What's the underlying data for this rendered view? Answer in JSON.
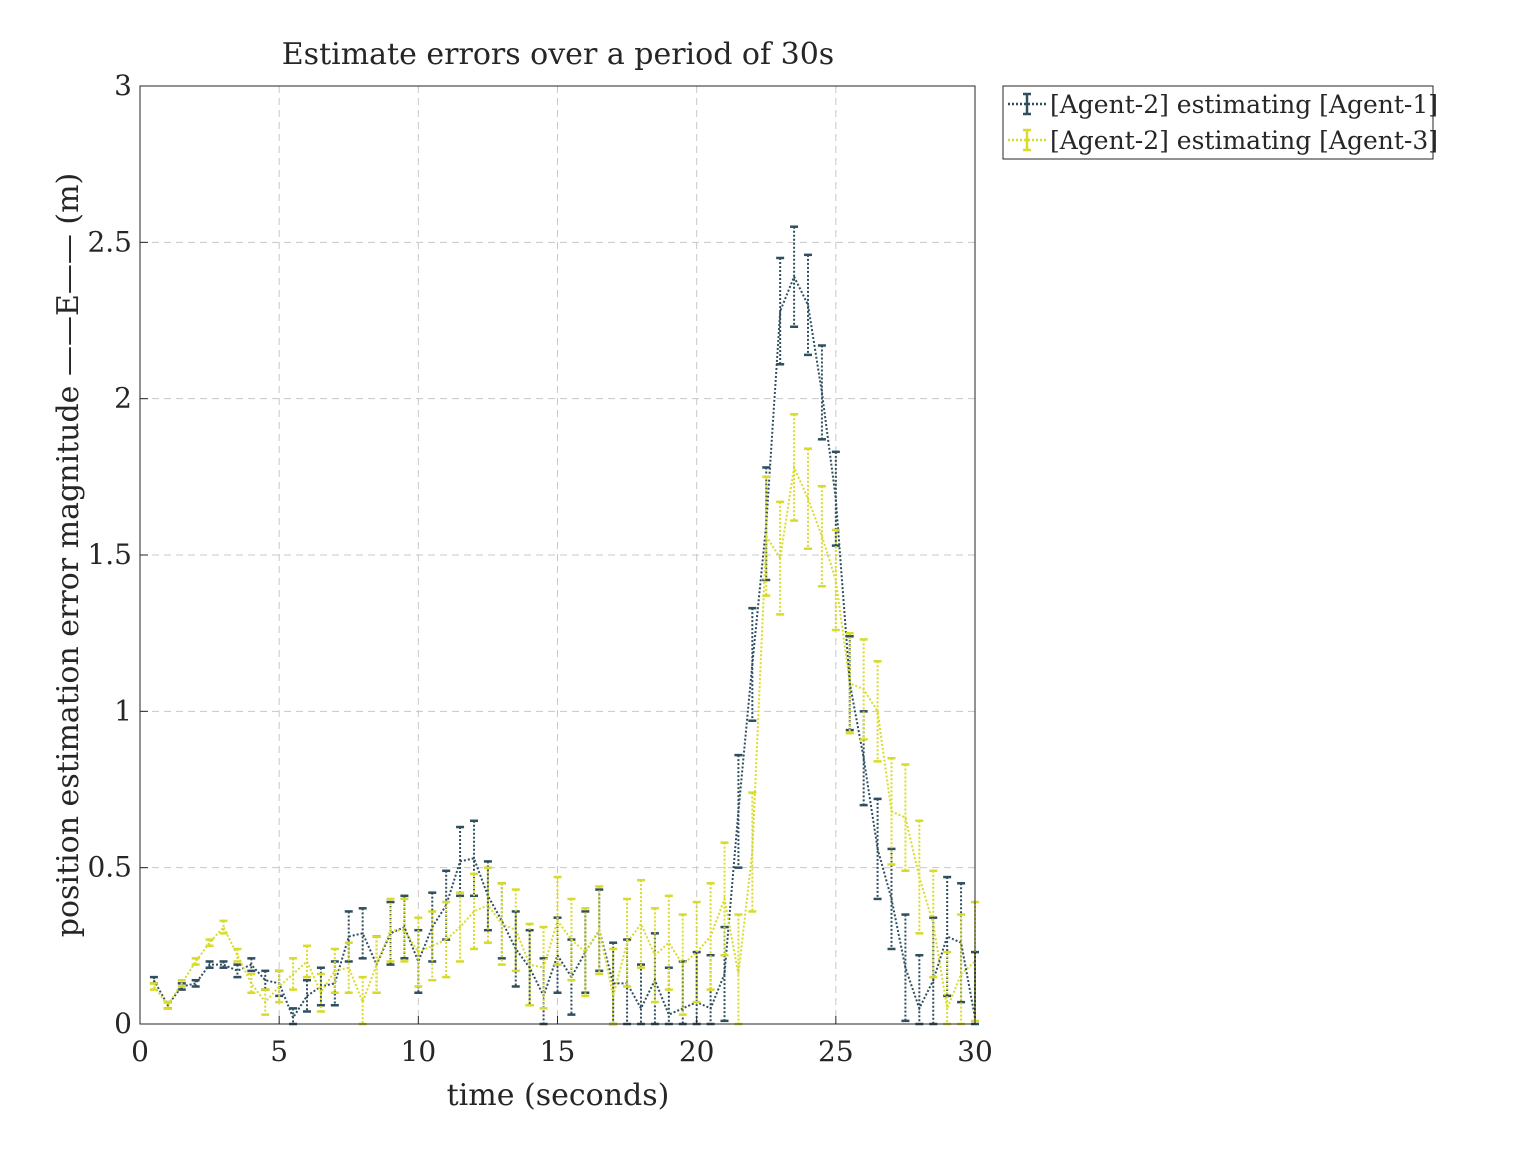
{
  "chart_data": {
    "type": "line",
    "title": "Estimate errors over a period of 30s",
    "xlabel": "time (seconds)",
    "ylabel": "position estimation error magnitude ——E—— (m)",
    "xlim": [
      0,
      30
    ],
    "ylim": [
      0,
      3
    ],
    "xticks": [
      "0",
      "5",
      "10",
      "15",
      "20",
      "25",
      "30"
    ],
    "yticks": [
      "0",
      "0.5",
      "1",
      "1.5",
      "2",
      "2.5",
      "3"
    ],
    "grid": true,
    "legend_position": "outside-top-right",
    "series": [
      {
        "name": "[Agent-2] estimating [Agent-1]",
        "color": "#2f4f5f",
        "x": [
          0.5,
          1,
          1.5,
          2,
          2.5,
          3,
          3.5,
          4,
          4.5,
          5,
          5.5,
          6,
          6.5,
          7,
          7.5,
          8,
          8.5,
          9,
          9.5,
          10,
          10.5,
          11,
          11.5,
          12,
          12.5,
          13,
          13.5,
          14,
          14.5,
          15,
          15.5,
          16,
          16.5,
          17,
          17.5,
          18,
          18.5,
          19,
          19.5,
          20,
          20.5,
          21,
          21.5,
          22,
          22.5,
          23,
          23.5,
          24,
          24.5,
          25,
          25.5,
          26,
          26.5,
          27,
          27.5,
          28,
          28.5,
          29,
          29.5,
          30
        ],
        "y": [
          0.14,
          0.06,
          0.12,
          0.13,
          0.19,
          0.19,
          0.17,
          0.19,
          0.14,
          0.13,
          0.02,
          0.09,
          0.12,
          0.13,
          0.28,
          0.29,
          0.19,
          0.29,
          0.31,
          0.2,
          0.31,
          0.38,
          0.52,
          0.53,
          0.41,
          0.33,
          0.24,
          0.18,
          0.09,
          0.22,
          0.15,
          0.23,
          0.3,
          0.13,
          0.13,
          0.05,
          0.14,
          0.03,
          0.05,
          0.07,
          0.05,
          0.16,
          0.68,
          1.15,
          1.6,
          2.28,
          2.39,
          2.3,
          2.02,
          1.68,
          1.09,
          0.85,
          0.56,
          0.4,
          0.18,
          0.05,
          0.14,
          0.28,
          0.26,
          0.02
        ],
        "err": [
          0.01,
          0.01,
          0.01,
          0.01,
          0.01,
          0.01,
          0.02,
          0.02,
          0.03,
          0.04,
          0.03,
          0.05,
          0.06,
          0.07,
          0.08,
          0.08,
          0.09,
          0.1,
          0.1,
          0.1,
          0.11,
          0.11,
          0.11,
          0.12,
          0.11,
          0.12,
          0.12,
          0.12,
          0.12,
          0.12,
          0.12,
          0.13,
          0.13,
          0.13,
          0.14,
          0.14,
          0.15,
          0.15,
          0.15,
          0.16,
          0.17,
          0.15,
          0.18,
          0.18,
          0.18,
          0.17,
          0.16,
          0.16,
          0.15,
          0.15,
          0.15,
          0.15,
          0.16,
          0.16,
          0.17,
          0.17,
          0.2,
          0.19,
          0.19,
          0.21
        ]
      },
      {
        "name": "[Agent-2] estimating [Agent-3]",
        "color": "#d8db2a",
        "x": [
          0.5,
          1,
          1.5,
          2,
          2.5,
          3,
          3.5,
          4,
          4.5,
          5,
          5.5,
          6,
          6.5,
          7,
          7.5,
          8,
          8.5,
          9,
          9.5,
          10,
          10.5,
          11,
          11.5,
          12,
          12.5,
          13,
          13.5,
          14,
          14.5,
          15,
          15.5,
          16,
          16.5,
          17,
          17.5,
          18,
          18.5,
          19,
          19.5,
          20,
          20.5,
          21,
          21.5,
          22,
          22.5,
          23,
          23.5,
          24,
          24.5,
          25,
          25.5,
          26,
          26.5,
          27,
          27.5,
          28,
          28.5,
          29,
          29.5,
          30
        ],
        "y": [
          0.12,
          0.06,
          0.13,
          0.2,
          0.26,
          0.31,
          0.22,
          0.13,
          0.07,
          0.12,
          0.16,
          0.2,
          0.1,
          0.17,
          0.18,
          0.07,
          0.19,
          0.3,
          0.3,
          0.23,
          0.25,
          0.27,
          0.31,
          0.36,
          0.38,
          0.32,
          0.3,
          0.19,
          0.18,
          0.33,
          0.27,
          0.23,
          0.3,
          0.09,
          0.26,
          0.32,
          0.22,
          0.26,
          0.19,
          0.23,
          0.28,
          0.4,
          0.16,
          0.55,
          1.56,
          1.49,
          1.78,
          1.68,
          1.56,
          1.42,
          1.09,
          1.07,
          1.0,
          0.68,
          0.66,
          0.47,
          0.32,
          0.05,
          0.16,
          0.2
        ],
        "err": [
          0.01,
          0.01,
          0.01,
          0.01,
          0.01,
          0.02,
          0.02,
          0.03,
          0.04,
          0.05,
          0.05,
          0.05,
          0.06,
          0.07,
          0.08,
          0.08,
          0.09,
          0.1,
          0.1,
          0.11,
          0.11,
          0.12,
          0.11,
          0.12,
          0.12,
          0.13,
          0.13,
          0.13,
          0.13,
          0.14,
          0.13,
          0.14,
          0.14,
          0.15,
          0.14,
          0.14,
          0.15,
          0.15,
          0.16,
          0.16,
          0.17,
          0.18,
          0.19,
          0.19,
          0.19,
          0.18,
          0.17,
          0.16,
          0.16,
          0.16,
          0.16,
          0.16,
          0.16,
          0.17,
          0.17,
          0.18,
          0.17,
          0.18,
          0.19,
          0.19
        ]
      }
    ]
  }
}
